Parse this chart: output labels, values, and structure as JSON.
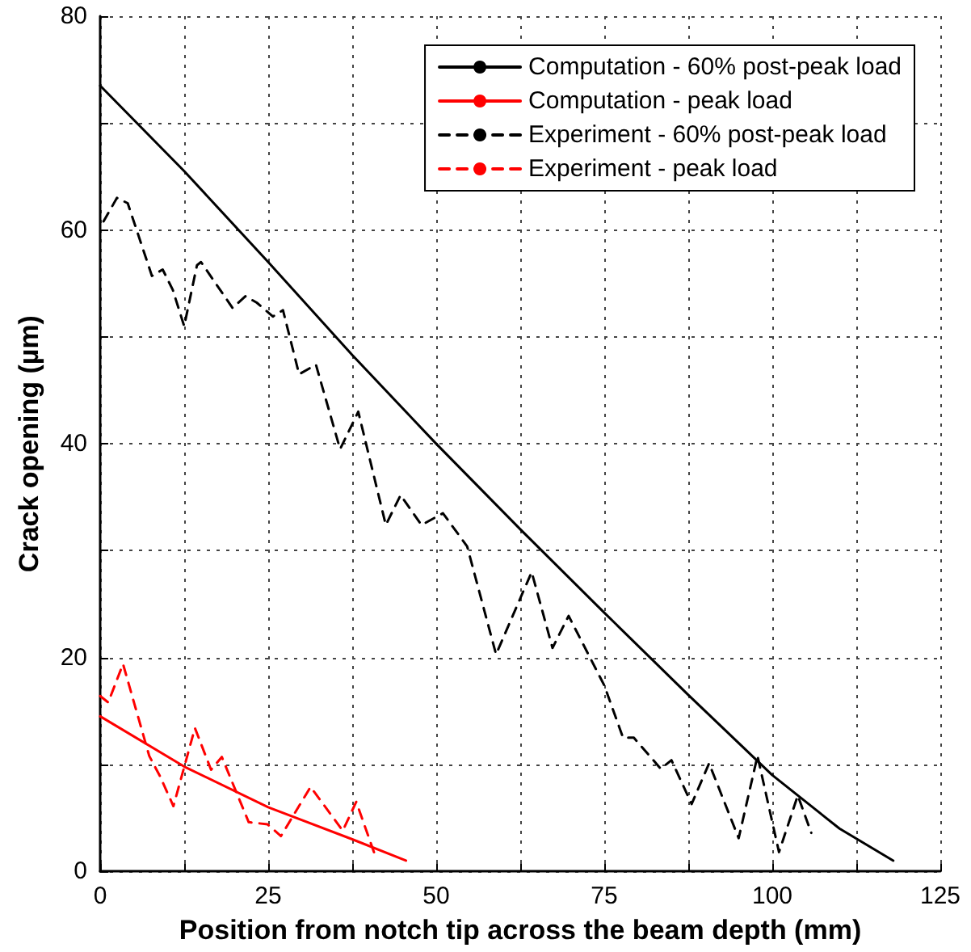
{
  "chart_data": {
    "type": "line",
    "xlabel": "Position from notch tip across the beam depth (mm)",
    "ylabel": "Crack opening (µm)",
    "xlim": [
      0,
      125
    ],
    "xticks": [
      0,
      {
        "value": 12.5,
        "label": null
      },
      25,
      {
        "value": 37.5,
        "label": null
      },
      50,
      {
        "value": 62.5,
        "label": null
      },
      75,
      {
        "value": 87.5,
        "label": null
      },
      100,
      {
        "value": 112.5,
        "label": null
      },
      125
    ],
    "ylim": [
      0,
      80
    ],
    "yticks": [
      0,
      {
        "value": 10,
        "label": null
      },
      20,
      {
        "value": 30,
        "label": null
      },
      40,
      {
        "value": 50,
        "label": null
      },
      60,
      {
        "value": 70,
        "label": null
      },
      80
    ],
    "grid": true,
    "legend": "top right",
    "marker": "none",
    "series": [
      {
        "name": "Computation - 60% post-peak load",
        "color": "#000000",
        "line_style": "solid",
        "x": [
          0,
          12.5,
          25,
          37.5,
          50,
          62.5,
          75,
          87.5,
          100,
          110,
          118
        ],
        "values": [
          73.5,
          65.5,
          57,
          48.3,
          40,
          32,
          24.2,
          16.5,
          9,
          4,
          1
        ]
      },
      {
        "name": "Computation - peak load",
        "color": "#ff0000",
        "line_style": "solid",
        "x": [
          0,
          12.5,
          25,
          37.5,
          45.5
        ],
        "values": [
          14.5,
          9.8,
          6,
          3,
          1
        ]
      },
      {
        "name": "Experiment - 60% post-peak load",
        "color": "#000000",
        "line_style": "dashed",
        "x": [
          0.5,
          2.5,
          4.1,
          7.7,
          9.3,
          10.8,
          12.5,
          14.4,
          15,
          19.7,
          21.6,
          23.3,
          25.7,
          27.2,
          29.6,
          32.1,
          35.7,
          38.4,
          42.5,
          44.7,
          47.8,
          51,
          54.6,
          58.9,
          64.2,
          67.3,
          69.7,
          75,
          77.8,
          79.4,
          83.4,
          85,
          88,
          90.6,
          95,
          97.8,
          101,
          103.8,
          105.8
        ],
        "values": [
          60.8,
          63,
          62.5,
          55.7,
          56.3,
          54.4,
          51,
          56.7,
          57,
          52.7,
          53.8,
          53.2,
          51.9,
          52.5,
          46.5,
          47.4,
          39.5,
          43,
          32.4,
          35.2,
          32.4,
          33.5,
          30.4,
          20.3,
          28,
          20.9,
          23.9,
          17.4,
          12.5,
          12.5,
          9.6,
          10.4,
          6.3,
          10.1,
          3.1,
          10.8,
          1.8,
          7.1,
          3.6
        ]
      },
      {
        "name": "Experiment - peak load",
        "color": "#ff0000",
        "line_style": "dashed",
        "x": [
          0,
          1.2,
          3.4,
          7.3,
          8.9,
          10.9,
          14.1,
          16.5,
          18.1,
          22.1,
          24.9,
          26.9,
          31.3,
          36.1,
          38.1,
          40.9
        ],
        "values": [
          16.4,
          15.8,
          19.4,
          10.8,
          8.9,
          6.1,
          13.4,
          9.5,
          10.7,
          4.6,
          4.4,
          3.3,
          7.9,
          3.8,
          6.5,
          1.5
        ]
      }
    ]
  }
}
